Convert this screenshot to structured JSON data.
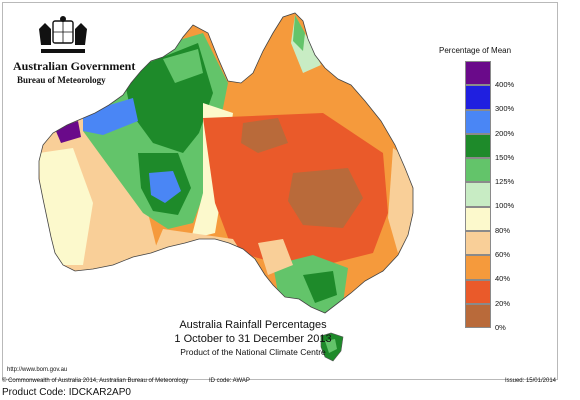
{
  "header": {
    "government": "Australian Government",
    "bureau": "Bureau of Meteorology"
  },
  "legend": {
    "title": "Percentage of Mean",
    "items": [
      {
        "label": "400%",
        "color": "#6a0a8a"
      },
      {
        "label": "300%",
        "color": "#1f1fe0"
      },
      {
        "label": "200%",
        "color": "#4a86f5"
      },
      {
        "label": "150%",
        "color": "#1e8a2a"
      },
      {
        "label": "125%",
        "color": "#63c46a"
      },
      {
        "label": "100%",
        "color": "#c8ecc4"
      },
      {
        "label": "80%",
        "color": "#fcf9cc"
      },
      {
        "label": "60%",
        "color": "#f9cf98"
      },
      {
        "label": "40%",
        "color": "#f59a3c"
      },
      {
        "label": "20%",
        "color": "#ea5a2a"
      },
      {
        "label": "0%",
        "color": "#b96a3a"
      }
    ]
  },
  "title": {
    "main": "Australia Rainfall Percentages",
    "period": "1 October to 31 December 2013",
    "product": "Product of the National Climate Centre"
  },
  "url": "http://www.bom.gov.au",
  "footer": {
    "copyright": "© Commonwealth of Australia 2014, Australian Bureau of Meteorology",
    "id_code": "ID code: AWAP",
    "issued": "Issued: 15/01/2014"
  },
  "product_code": "Product Code: IDCKAR2AP0"
}
